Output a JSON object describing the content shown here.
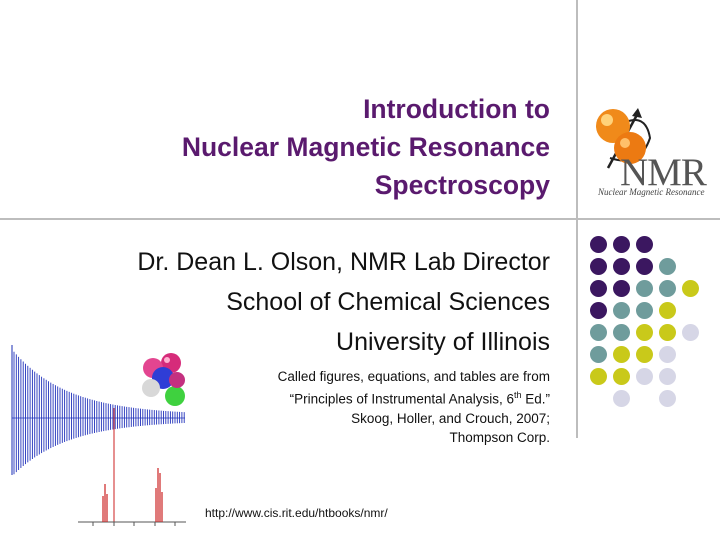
{
  "slide": {
    "title_lines": [
      "Introduction to",
      "Nuclear Magnetic Resonance",
      "Spectroscopy"
    ],
    "author": "Dr. Dean L. Olson, NMR Lab Director",
    "department": "School of Chemical Sciences",
    "university": "University of Illinois",
    "citation": {
      "line1": "Called figures, equations, and tables are from",
      "line2_pre": "“Principles of Instrumental Analysis, 6",
      "line2_sup": "th",
      "line2_post": " Ed.”",
      "line3": "Skoog, Holler, and Crouch,  2007;",
      "line4": "Thompson Corp."
    },
    "url": "http://www.cis.rit.edu/htbooks/nmr/"
  },
  "logo": {
    "text": "NMR",
    "subtitle": "Nuclear Magnetic Resonance"
  },
  "colors": {
    "title": "#5a1a6e",
    "purple": "#3b1760",
    "teal": "#6f9c9c",
    "olive": "#c9c91a",
    "lavender": "#d6d6e6"
  },
  "dot_grid": [
    [
      "purple",
      "purple",
      "purple",
      ""
    ],
    [
      "purple",
      "purple",
      "purple",
      "teal"
    ],
    [
      "purple",
      "purple",
      "teal",
      "teal",
      "olive"
    ],
    [
      "purple",
      "teal",
      "teal",
      "olive"
    ],
    [
      "teal",
      "teal",
      "olive",
      "olive",
      "lavender"
    ],
    [
      "teal",
      "olive",
      "olive",
      "lavender"
    ],
    [
      "olive",
      "olive",
      "lavender",
      "lavender"
    ],
    [
      "",
      "lavender",
      "",
      "lavender"
    ]
  ]
}
